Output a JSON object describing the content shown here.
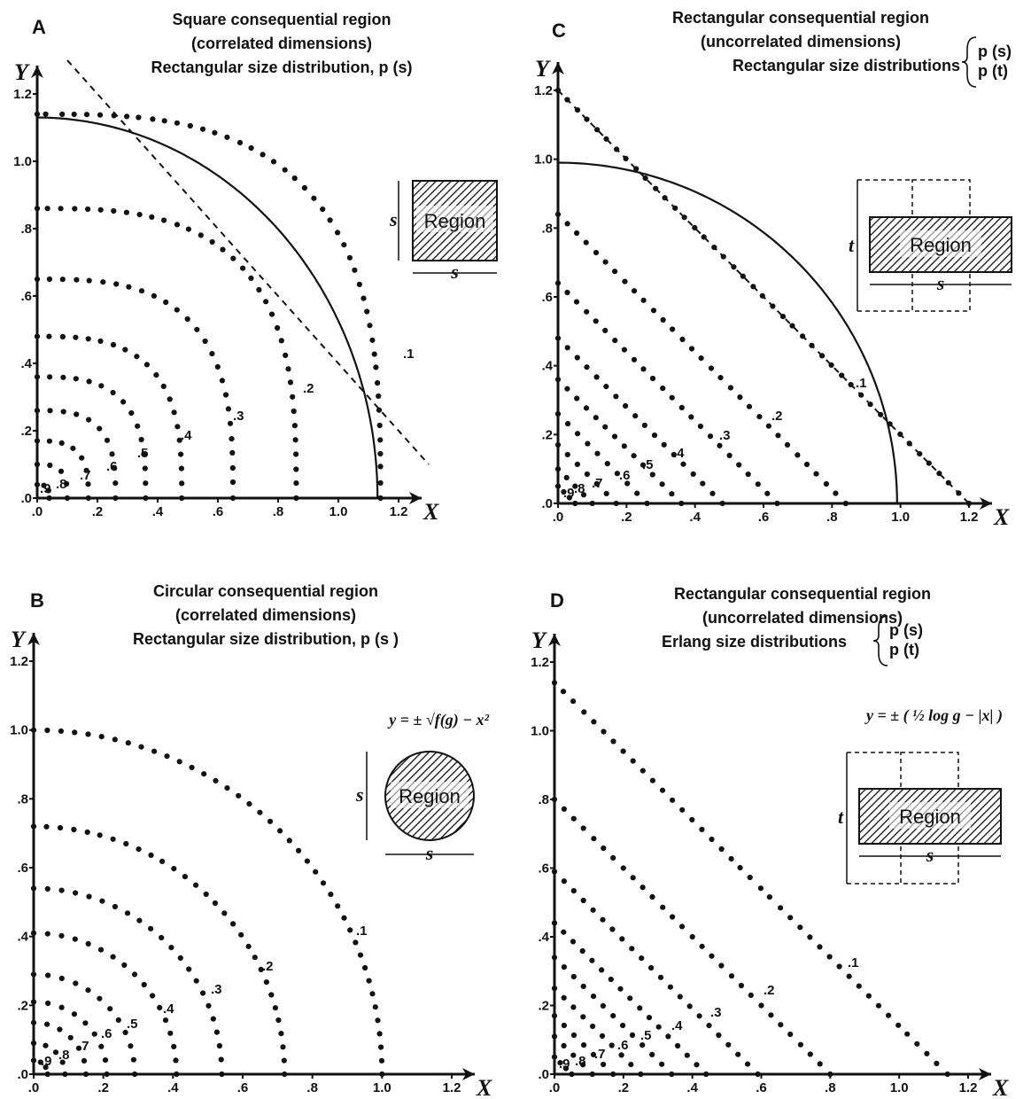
{
  "chart_data": [
    {
      "panel": "A",
      "type": "scatter",
      "title_lines": [
        "Square consequential region",
        "(correlated dimensions)",
        "Rectangular size distribution, p (s)"
      ],
      "xlabel": "X",
      "ylabel": "Y",
      "xlim": [
        0,
        1.2
      ],
      "ylim": [
        0,
        1.2
      ],
      "x_ticks": [
        ".0",
        ".2",
        ".4",
        ".6",
        ".8",
        "1.0",
        "1.2"
      ],
      "y_ticks": [
        ".0",
        ".2",
        ".4",
        ".6",
        ".8",
        "1.0",
        "1.2"
      ],
      "inset": {
        "shape": "square",
        "label": "Region",
        "dims": [
          "s",
          "s"
        ]
      },
      "series": [
        {
          "name": ".1",
          "contour": "superellipse",
          "radius": 1.14,
          "exponent": 3
        },
        {
          "name": ".2",
          "contour": "superellipse",
          "radius": 0.86,
          "exponent": 3
        },
        {
          "name": ".3",
          "contour": "superellipse",
          "radius": 0.65,
          "exponent": 3
        },
        {
          "name": ".4",
          "contour": "superellipse",
          "radius": 0.48,
          "exponent": 3
        },
        {
          "name": ".5",
          "contour": "superellipse",
          "radius": 0.36,
          "exponent": 3
        },
        {
          "name": ".6",
          "contour": "superellipse",
          "radius": 0.26,
          "exponent": 3
        },
        {
          "name": ".7",
          "contour": "superellipse",
          "radius": 0.17,
          "exponent": 3
        },
        {
          "name": ".8",
          "contour": "superellipse",
          "radius": 0.1,
          "exponent": 3
        },
        {
          "name": ".9",
          "contour": "superellipse",
          "radius": 0.04,
          "exponent": 3
        }
      ],
      "solid_curve": {
        "contour": "ellipse",
        "radius": 1.13
      },
      "dashed_line": {
        "from": [
          0.1,
          1.3
        ],
        "to": [
          1.3,
          0.1
        ]
      }
    },
    {
      "panel": "C",
      "type": "scatter",
      "title_lines": [
        "Rectangular consequential region",
        "(uncorrelated dimensions)",
        "Rectangular size distributions"
      ],
      "title_brace": [
        "p (s)",
        "p (t)"
      ],
      "xlabel": "X",
      "ylabel": "Y",
      "xlim": [
        0,
        1.2
      ],
      "ylim": [
        0,
        1.2
      ],
      "x_ticks": [
        ".0",
        ".2",
        ".4",
        ".6",
        ".8",
        "1.0",
        "1.2"
      ],
      "y_ticks": [
        ".0",
        ".2",
        ".4",
        ".6",
        ".8",
        "1.0",
        "1.2"
      ],
      "inset": {
        "shape": "rectangle-cross",
        "label": "Region",
        "dims": [
          "s",
          "t"
        ]
      },
      "series": [
        {
          "name": ".1",
          "contour": "line",
          "radius": 1.2
        },
        {
          "name": ".2",
          "contour": "line",
          "radius": 0.84
        },
        {
          "name": ".3",
          "contour": "line",
          "radius": 0.64
        },
        {
          "name": ".4",
          "contour": "line",
          "radius": 0.48
        },
        {
          "name": ".5",
          "contour": "line",
          "radius": 0.36
        },
        {
          "name": ".6",
          "contour": "line",
          "radius": 0.26
        },
        {
          "name": ".7",
          "contour": "line",
          "radius": 0.17
        },
        {
          "name": ".8",
          "contour": "line",
          "radius": 0.1
        },
        {
          "name": ".9",
          "contour": "line",
          "radius": 0.05
        }
      ],
      "solid_curve": {
        "contour": "ellipse",
        "radius": 0.99
      },
      "dashed_line": {
        "from": [
          0,
          1.2
        ],
        "to": [
          1.2,
          0
        ]
      }
    },
    {
      "panel": "B",
      "type": "scatter",
      "title_lines": [
        "Circular consequential region",
        "(correlated dimensions)",
        "Rectangular size distribution, p (s )"
      ],
      "equation": "y = ± √f(g) − x²",
      "xlabel": "X",
      "ylabel": "Y",
      "xlim": [
        0,
        1.2
      ],
      "ylim": [
        0,
        1.2
      ],
      "x_ticks": [
        ".0",
        ".2",
        ".4",
        ".6",
        ".8",
        "1.0",
        "1.2"
      ],
      "y_ticks": [
        ".0",
        ".2",
        ".4",
        ".6",
        ".8",
        "1.0",
        "1.2"
      ],
      "inset": {
        "shape": "circle",
        "label": "Region",
        "dims": [
          "s",
          "s"
        ]
      },
      "series": [
        {
          "name": ".1",
          "contour": "ellipse",
          "radius": 1.0
        },
        {
          "name": ".2",
          "contour": "ellipse",
          "radius": 0.72
        },
        {
          "name": ".3",
          "contour": "ellipse",
          "radius": 0.54
        },
        {
          "name": ".4",
          "contour": "ellipse",
          "radius": 0.41
        },
        {
          "name": ".5",
          "contour": "ellipse",
          "radius": 0.29
        },
        {
          "name": ".6",
          "contour": "ellipse",
          "radius": 0.21
        },
        {
          "name": ".7",
          "contour": "ellipse",
          "radius": 0.15
        },
        {
          "name": ".8",
          "contour": "ellipse",
          "radius": 0.09
        },
        {
          "name": ".9",
          "contour": "ellipse",
          "radius": 0.04
        }
      ]
    },
    {
      "panel": "D",
      "type": "scatter",
      "title_lines": [
        "Rectangular consequential region",
        "(uncorrelated dimensions)",
        "Erlang size distributions"
      ],
      "title_brace": [
        "p (s)",
        "p (t)"
      ],
      "equation": "y = ± ( ½ log g − |x| )",
      "xlabel": "X",
      "ylabel": "Y",
      "xlim": [
        0,
        1.2
      ],
      "ylim": [
        0,
        1.2
      ],
      "x_ticks": [
        ".0",
        ".2",
        ".4",
        ".6",
        ".8",
        "1.0",
        "1.2"
      ],
      "y_ticks": [
        ".0",
        ".2",
        ".4",
        ".6",
        ".8",
        "1.0",
        "1.2"
      ],
      "inset": {
        "shape": "rectangle-cross",
        "label": "Region",
        "dims": [
          "s",
          "t"
        ]
      },
      "series": [
        {
          "name": ".1",
          "contour": "line",
          "radius": 1.14
        },
        {
          "name": ".2",
          "contour": "line",
          "radius": 0.8
        },
        {
          "name": ".3",
          "contour": "line",
          "radius": 0.59
        },
        {
          "name": ".4",
          "contour": "line",
          "radius": 0.44
        },
        {
          "name": ".5",
          "contour": "line",
          "radius": 0.34
        },
        {
          "name": ".6",
          "contour": "line",
          "radius": 0.25
        },
        {
          "name": ".7",
          "contour": "line",
          "radius": 0.17
        },
        {
          "name": ".8",
          "contour": "line",
          "radius": 0.11
        },
        {
          "name": ".9",
          "contour": "line",
          "radius": 0.05
        }
      ]
    }
  ]
}
